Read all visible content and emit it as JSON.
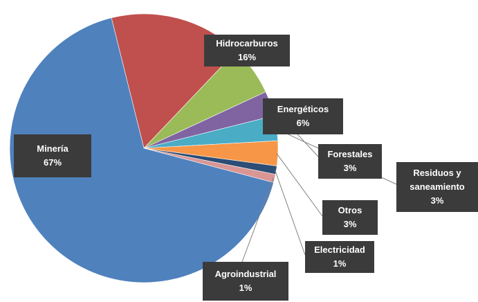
{
  "chart_data": {
    "type": "pie",
    "title": "",
    "slices": [
      {
        "name": "Minería",
        "label": "67%",
        "value": 67,
        "color": "#4F81BD"
      },
      {
        "name": "Hidrocarburos",
        "label": "16%",
        "value": 16,
        "color": "#C0504D"
      },
      {
        "name": "Energéticos",
        "label": "6%",
        "value": 6,
        "color": "#9BBB59"
      },
      {
        "name": "Forestales",
        "label": "3%",
        "value": 3,
        "color": "#8064A2"
      },
      {
        "name": "Residuos y saneamiento",
        "label": "3%",
        "value": 3,
        "color": "#4BACC6"
      },
      {
        "name": "Otros",
        "label": "3%",
        "value": 3,
        "color": "#F79646"
      },
      {
        "name": "Electricidad",
        "label": "1%",
        "value": 1,
        "color": "#2C4D75"
      },
      {
        "name": "Agroindustrial",
        "label": "1%",
        "value": 1,
        "color": "#D99694"
      }
    ]
  }
}
